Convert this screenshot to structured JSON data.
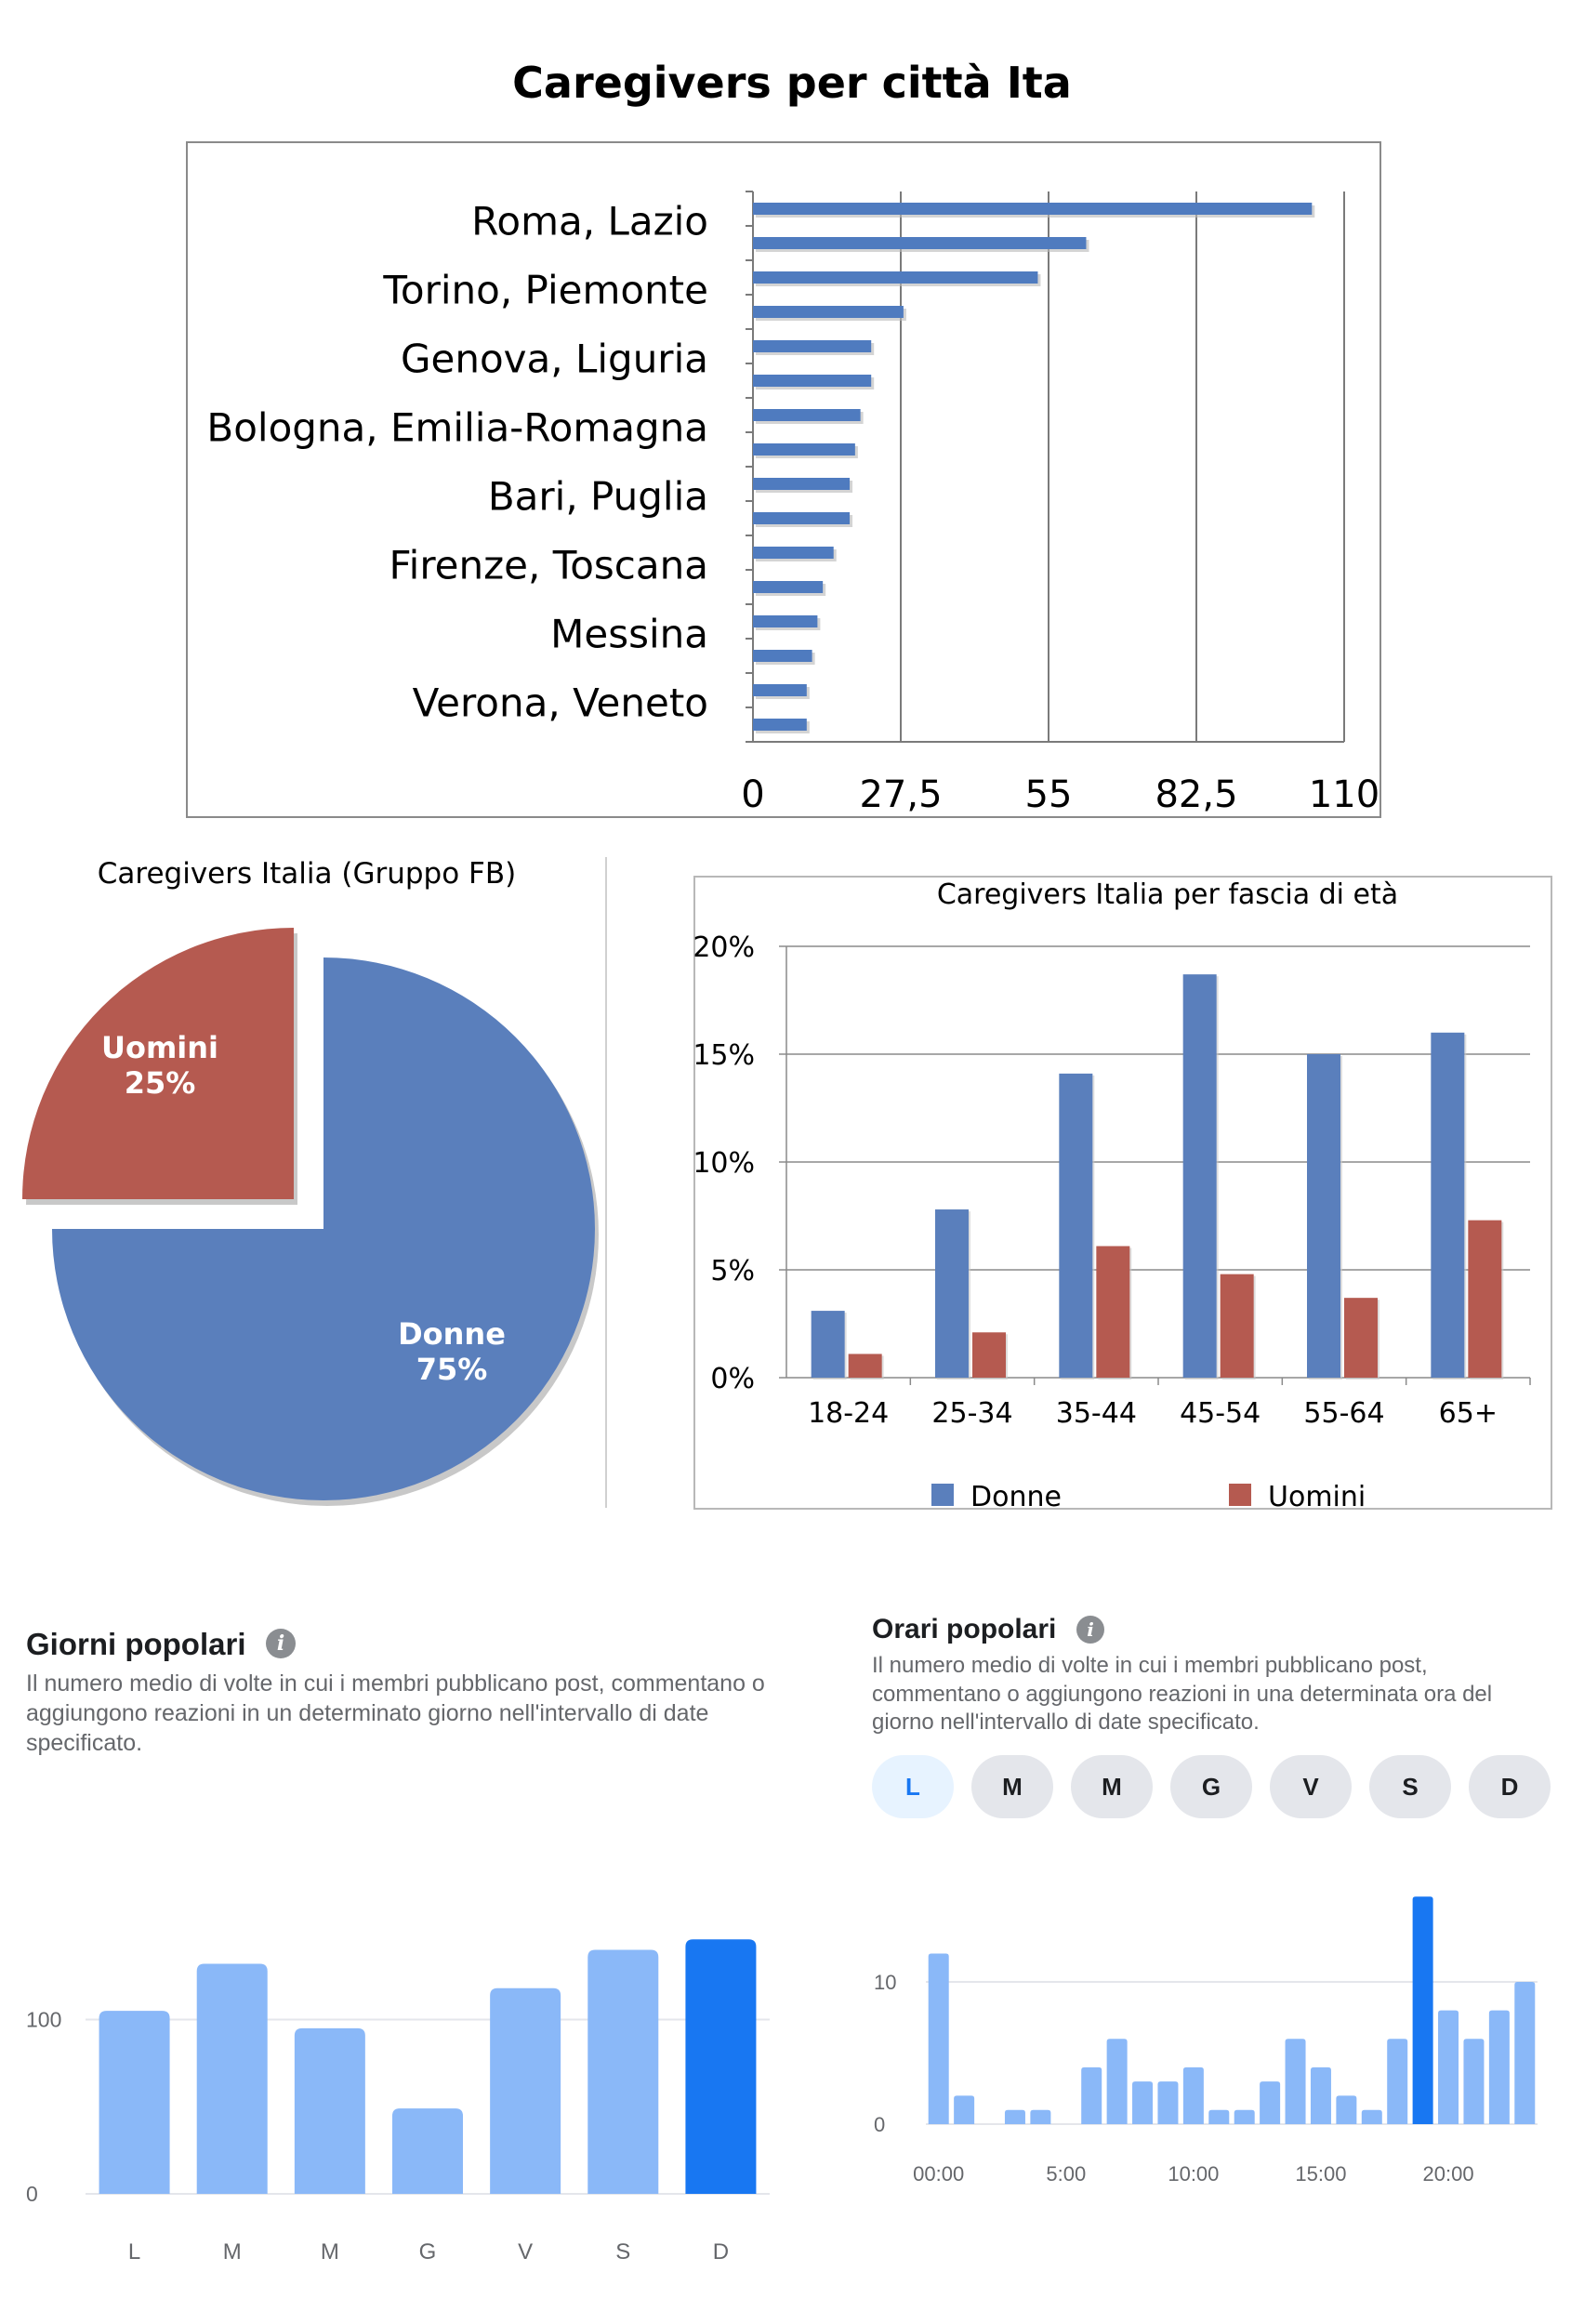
{
  "chart_data": [
    {
      "type": "bar",
      "orientation": "horizontal",
      "title": "Caregivers per città Ita",
      "categories": [
        "Roma, Lazio",
        "",
        "Torino, Piemonte",
        "",
        "Genova, Liguria",
        "",
        "Bologna, Emilia-Romagna",
        "",
        "Bari, Puglia",
        "",
        "Firenze, Toscana",
        "",
        "Messina",
        "",
        "Verona, Veneto",
        ""
      ],
      "values": [
        104,
        62,
        53,
        28,
        22,
        22,
        20,
        19,
        18,
        18,
        15,
        13,
        12,
        11,
        10,
        10
      ],
      "xticks": [
        "0",
        "27,5",
        "55",
        "82,5",
        "110"
      ],
      "xlim": [
        0,
        110
      ],
      "grid": true,
      "color": "#4f7bbf"
    },
    {
      "type": "pie",
      "title": "Caregivers Italia (Gruppo FB)",
      "slices": [
        {
          "label": "Donne",
          "value": 75,
          "pct": "75%",
          "color": "#5a7fbc"
        },
        {
          "label": "Uomini",
          "value": 25,
          "pct": "25%",
          "color": "#b55a50",
          "exploded": true
        }
      ]
    },
    {
      "type": "bar",
      "title": "Caregivers Italia per fascia di età",
      "categories": [
        "18-24",
        "25-34",
        "35-44",
        "45-54",
        "55-64",
        "65+"
      ],
      "series": [
        {
          "name": "Donne",
          "values": [
            3.1,
            7.8,
            14.1,
            18.7,
            15.0,
            16.0
          ],
          "color": "#5a7fbc"
        },
        {
          "name": "Uomini",
          "values": [
            1.1,
            2.1,
            6.1,
            4.8,
            3.7,
            7.3
          ],
          "color": "#b55a50"
        }
      ],
      "yticks": [
        "0%",
        "5%",
        "10%",
        "15%",
        "20%"
      ],
      "ylim": [
        0,
        20
      ],
      "legend": "bottom",
      "grid": true
    },
    {
      "type": "bar",
      "title": "Giorni popolari",
      "description": "Il numero medio di volte in cui i membri pubblicano post, commentano o aggiungono reazioni in un determinato giorno nell'intervallo di date specificato.",
      "categories": [
        "L",
        "M",
        "M",
        "G",
        "V",
        "S",
        "D"
      ],
      "values": [
        105,
        132,
        95,
        49,
        118,
        140,
        146
      ],
      "highlight_index": 6,
      "yticks": [
        "0",
        "100"
      ],
      "ylim": [
        0,
        160
      ],
      "color": "#8ab8f8",
      "highlight_color": "#1877f2"
    },
    {
      "type": "bar",
      "title": "Orari popolari",
      "description": "Il numero medio di volte in cui i membri pubblicano post, commentano o aggiungono reazioni in una determinata ora del giorno nell'intervallo di date specificato.",
      "day_tabs": [
        "L",
        "M",
        "M",
        "G",
        "V",
        "S",
        "D"
      ],
      "active_tab": 0,
      "x": [
        0,
        1,
        2,
        3,
        4,
        5,
        6,
        7,
        8,
        9,
        10,
        11,
        12,
        13,
        14,
        15,
        16,
        17,
        18,
        19,
        20,
        21,
        22,
        23
      ],
      "values": [
        12,
        2,
        0,
        1,
        1,
        0,
        4,
        6,
        3,
        3,
        4,
        1,
        1,
        3,
        6,
        4,
        2,
        1,
        6,
        16,
        8,
        6,
        8,
        10
      ],
      "highlight_index": 19,
      "xticks": [
        "00:00",
        "5:00",
        "10:00",
        "15:00",
        "20:00"
      ],
      "yticks": [
        "0",
        "10"
      ],
      "ylim": [
        0,
        17
      ],
      "color": "#8ab8f8",
      "highlight_color": "#1877f2"
    }
  ]
}
